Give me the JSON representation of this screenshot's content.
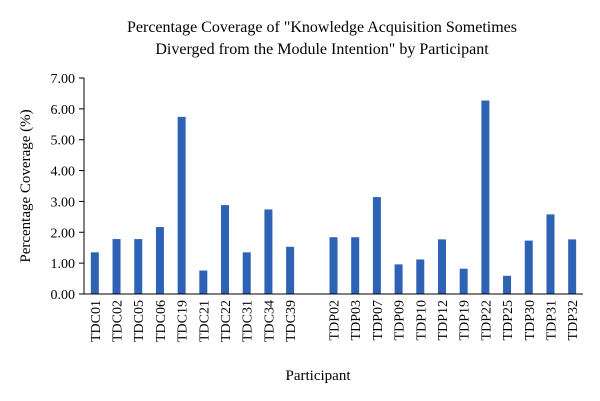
{
  "chart_data": {
    "type": "bar",
    "title_lines": [
      "Percentage Coverage of \"Knowledge Acquisition Sometimes",
      "Diverged from the Module Intention\" by Participant"
    ],
    "xlabel": "Participant",
    "ylabel": "Percentage Coverage (%)",
    "ylim": [
      0,
      7
    ],
    "yticks": [
      "0.00",
      "1.00",
      "2.00",
      "3.00",
      "4.00",
      "5.00",
      "6.00",
      "7.00"
    ],
    "grid": false,
    "bar_color": "#2e62b4",
    "categories": [
      "TDC01",
      "TDC02",
      "TDC05",
      "TDC06",
      "TDC19",
      "TDC21",
      "TDC22",
      "TDC31",
      "TDC34",
      "TDC39",
      "",
      "TDP02",
      "TDP03",
      "TDP07",
      "TDP09",
      "TDP10",
      "TDP12",
      "TDP19",
      "TDP22",
      "TDP25",
      "TDP30",
      "TDP31",
      "TDP32"
    ],
    "values": [
      1.35,
      1.78,
      1.78,
      2.17,
      5.74,
      0.76,
      2.88,
      1.35,
      2.74,
      1.53,
      null,
      1.84,
      1.84,
      3.14,
      0.96,
      1.12,
      1.77,
      0.82,
      6.27,
      0.59,
      1.73,
      2.58,
      1.77
    ]
  }
}
